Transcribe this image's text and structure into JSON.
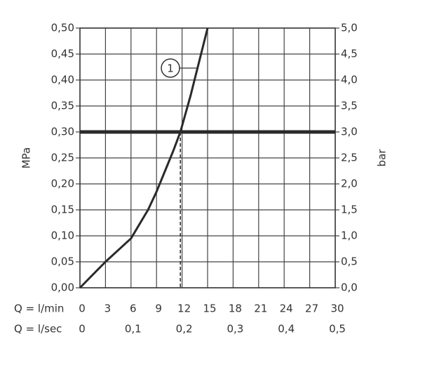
{
  "chart_data": {
    "type": "line",
    "y_label": "MPa",
    "y2_label": "bar",
    "x_label": "Q = l/min",
    "x2_label": "Q = l/sec",
    "x": [
      0,
      3,
      6,
      8,
      9,
      10,
      11,
      11.8,
      13,
      14,
      15
    ],
    "series": [
      {
        "name": "1",
        "color": "#2a2a2a",
        "values": [
          0,
          0.05,
          0.095,
          0.15,
          0.185,
          0.225,
          0.265,
          0.3,
          0.37,
          0.435,
          0.5
        ]
      }
    ],
    "xlim": [
      0,
      30
    ],
    "xticks": [
      0,
      3,
      6,
      9,
      12,
      15,
      18,
      21,
      24,
      27,
      30
    ],
    "x2lim": [
      0,
      0.5
    ],
    "x2ticks": [
      0,
      {
        "value": 0.1,
        "label": "0,1"
      },
      {
        "value": 0.2,
        "label": "0,2"
      },
      {
        "value": 0.3,
        "label": "0,3"
      },
      {
        "value": 0.4,
        "label": "0,4"
      },
      {
        "value": 0.5,
        "label": "0,5"
      }
    ],
    "ylim": [
      0,
      0.5
    ],
    "yticks": [
      {
        "value": 0,
        "label": "0,00"
      },
      {
        "value": 0.05,
        "label": "0,05"
      },
      {
        "value": 0.1,
        "label": "0,10"
      },
      {
        "value": 0.15,
        "label": "0,15"
      },
      {
        "value": 0.2,
        "label": "0,20"
      },
      {
        "value": 0.25,
        "label": "0,25"
      },
      {
        "value": 0.3,
        "label": "0,30"
      },
      {
        "value": 0.35,
        "label": "0,35"
      },
      {
        "value": 0.4,
        "label": "0,40"
      },
      {
        "value": 0.45,
        "label": "0,45"
      },
      {
        "value": 0.5,
        "label": "0,50"
      }
    ],
    "y2lim": [
      0,
      5
    ],
    "y2ticks": [
      {
        "value": 0,
        "label": "0,0"
      },
      {
        "value": 0.5,
        "label": "0,5"
      },
      {
        "value": 1,
        "label": "1,0"
      },
      {
        "value": 1.5,
        "label": "1,5"
      },
      {
        "value": 2,
        "label": "2,0"
      },
      {
        "value": 2.5,
        "label": "2,5"
      },
      {
        "value": 3,
        "label": "3,0"
      },
      {
        "value": 3.5,
        "label": "3,5"
      },
      {
        "value": 4,
        "label": "4,0"
      },
      {
        "value": 4.5,
        "label": "4,5"
      },
      {
        "value": 5,
        "label": "5,0"
      }
    ],
    "threshold": {
      "x": 11.8,
      "y": 0.3
    },
    "grid": true
  }
}
